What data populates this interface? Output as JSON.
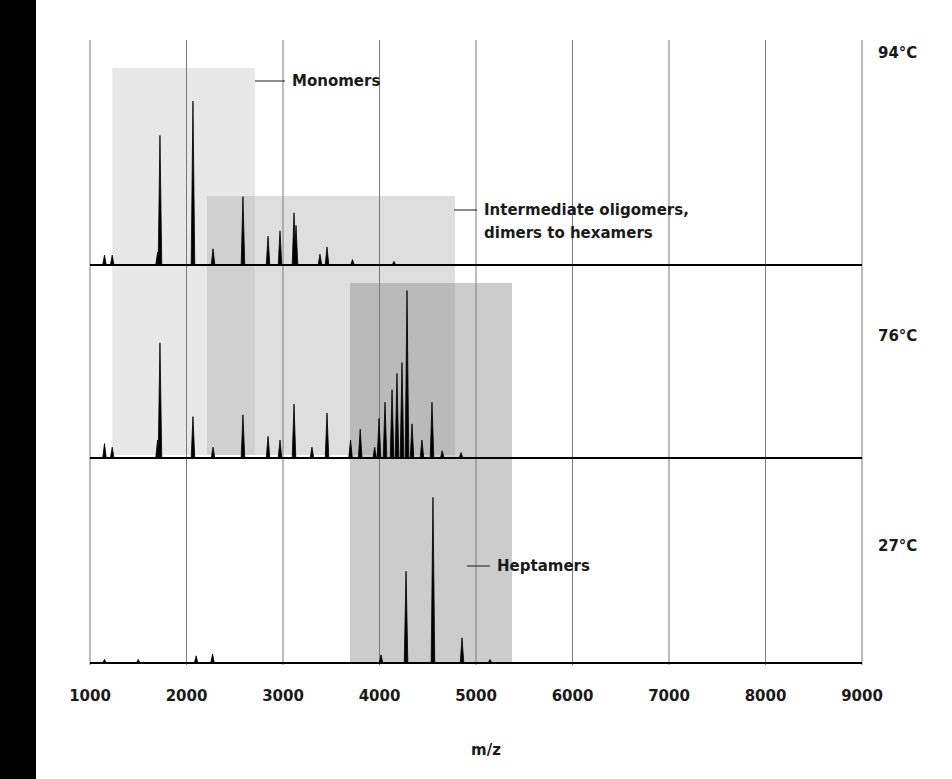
{
  "chart_data": {
    "type": "spectrum",
    "x_label": "m/z",
    "xlim": [
      1000,
      9000
    ],
    "xticks": [
      1000,
      2000,
      3000,
      4000,
      5000,
      6000,
      7000,
      8000,
      9000
    ],
    "ylim": [
      0,
      100
    ],
    "grid": true,
    "tick_labels": "x",
    "series": [
      {
        "name": "94°C",
        "color": "#000000",
        "x": [
          1150,
          1230,
          1700,
          1725,
          2067,
          2275,
          2585,
          2845,
          2969,
          3114,
          3135,
          3383,
          3456,
          3720,
          4150
        ],
        "values": [
          5.5,
          5.5,
          7,
          72,
          91,
          9,
          38,
          16,
          19,
          29,
          22,
          6,
          10,
          3,
          2
        ]
      },
      {
        "name": "76°C",
        "color": "#000000",
        "x": [
          1150,
          1230,
          1700,
          1725,
          2067,
          2275,
          2585,
          2845,
          2969,
          3114,
          3300,
          3456,
          3700,
          3800,
          3950,
          3995,
          4057,
          4130,
          4181,
          4233,
          4285,
          4337,
          4440,
          4544,
          4650,
          4845
        ],
        "values": [
          8,
          6,
          10,
          64,
          23,
          6,
          24,
          12,
          10,
          30,
          6,
          25,
          10,
          16,
          6,
          22,
          31,
          38,
          47,
          53,
          93,
          19,
          10,
          31,
          4,
          3
        ]
      },
      {
        "name": "27°C",
        "color": "#000000",
        "x": [
          1150,
          1500,
          2100,
          2270,
          4016,
          4275,
          4554,
          4855,
          5145
        ],
        "values": [
          2,
          2,
          4,
          5,
          4.5,
          51,
          92,
          14,
          2
        ]
      }
    ],
    "annotations": [
      {
        "label": "Monomers",
        "x_range": [
          1230,
          2710
        ]
      },
      {
        "label": "Intermediate oligomers, dimers to hexamers",
        "x_range": [
          2212,
          4782
        ]
      },
      {
        "label": "Heptamers",
        "x_range": [
          3694,
          5373
        ]
      }
    ]
  }
}
